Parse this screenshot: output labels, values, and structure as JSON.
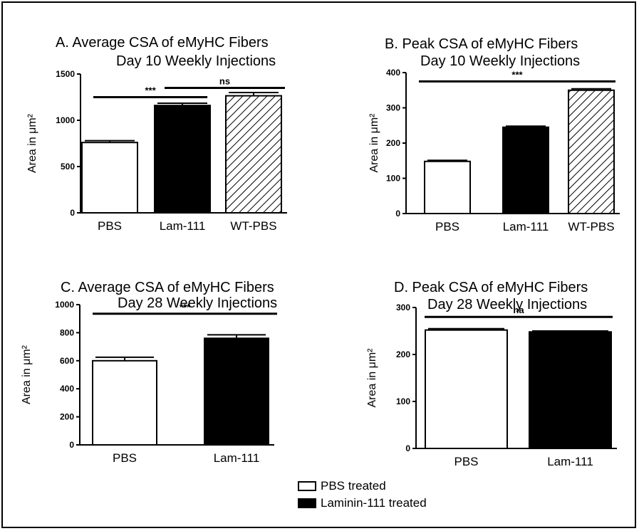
{
  "chart_data": [
    {
      "type": "bar",
      "title": "A.  Average CSA of eMyHC Fibers",
      "subtitle": "Day 10 Weekly Injections",
      "ylabel": "Area in μm²",
      "categories": [
        "PBS",
        "Lam-111",
        "WT-PBS"
      ],
      "values": [
        760,
        1160,
        1265
      ],
      "errors": [
        20,
        25,
        35
      ],
      "fills": [
        "white",
        "black",
        "hatch"
      ],
      "ylim": [
        0,
        1500
      ],
      "yticks": [
        0,
        500,
        1000,
        1500
      ],
      "significance": [
        {
          "from": 0,
          "to": 1,
          "y": 1250,
          "label": "***"
        },
        {
          "from": 1,
          "to": 2,
          "y": 1350,
          "label": "ns"
        }
      ]
    },
    {
      "type": "bar",
      "title": "B.  Peak CSA of eMyHC Fibers",
      "subtitle": "Day 10 Weekly Injections",
      "ylabel": "Area in μm²",
      "categories": [
        "PBS",
        "Lam-111",
        "WT-PBS"
      ],
      "values": [
        148,
        245,
        350
      ],
      "errors": [
        3,
        3,
        4
      ],
      "fills": [
        "white",
        "black",
        "hatch"
      ],
      "ylim": [
        0,
        400
      ],
      "yticks": [
        0,
        100,
        200,
        300,
        400
      ],
      "significance": [
        {
          "from": 0,
          "to": 2,
          "y": 375,
          "label": "***"
        }
      ]
    },
    {
      "type": "bar",
      "title": "C.  Average CSA of eMyHC Fibers",
      "subtitle": "Day 28 Weekly Injections",
      "ylabel": "Area in μm²",
      "categories": [
        "PBS",
        "Lam-111"
      ],
      "values": [
        600,
        760
      ],
      "errors": [
        25,
        25
      ],
      "fills": [
        "white",
        "black"
      ],
      "ylim": [
        0,
        1000
      ],
      "yticks": [
        0,
        200,
        400,
        600,
        800,
        1000
      ],
      "significance": [
        {
          "from": 0,
          "to": 1,
          "y": 935,
          "label": "***"
        }
      ]
    },
    {
      "type": "bar",
      "title": "D.  Peak CSA of eMyHC Fibers",
      "subtitle": "Day 28 Weekly Injections",
      "ylabel": "Area in μm²",
      "categories": [
        "PBS",
        "Lam-111"
      ],
      "values": [
        252,
        248
      ],
      "errors": [
        3,
        2
      ],
      "fills": [
        "white",
        "black"
      ],
      "ylim": [
        0,
        300
      ],
      "yticks": [
        0,
        100,
        200,
        300
      ],
      "significance": [
        {
          "from": 0,
          "to": 1,
          "y": 280,
          "label": "na"
        }
      ]
    }
  ],
  "legend": [
    {
      "label": "PBS treated",
      "fill": "#ffffff"
    },
    {
      "label": "Laminin-111 treated",
      "fill": "#000000"
    }
  ]
}
